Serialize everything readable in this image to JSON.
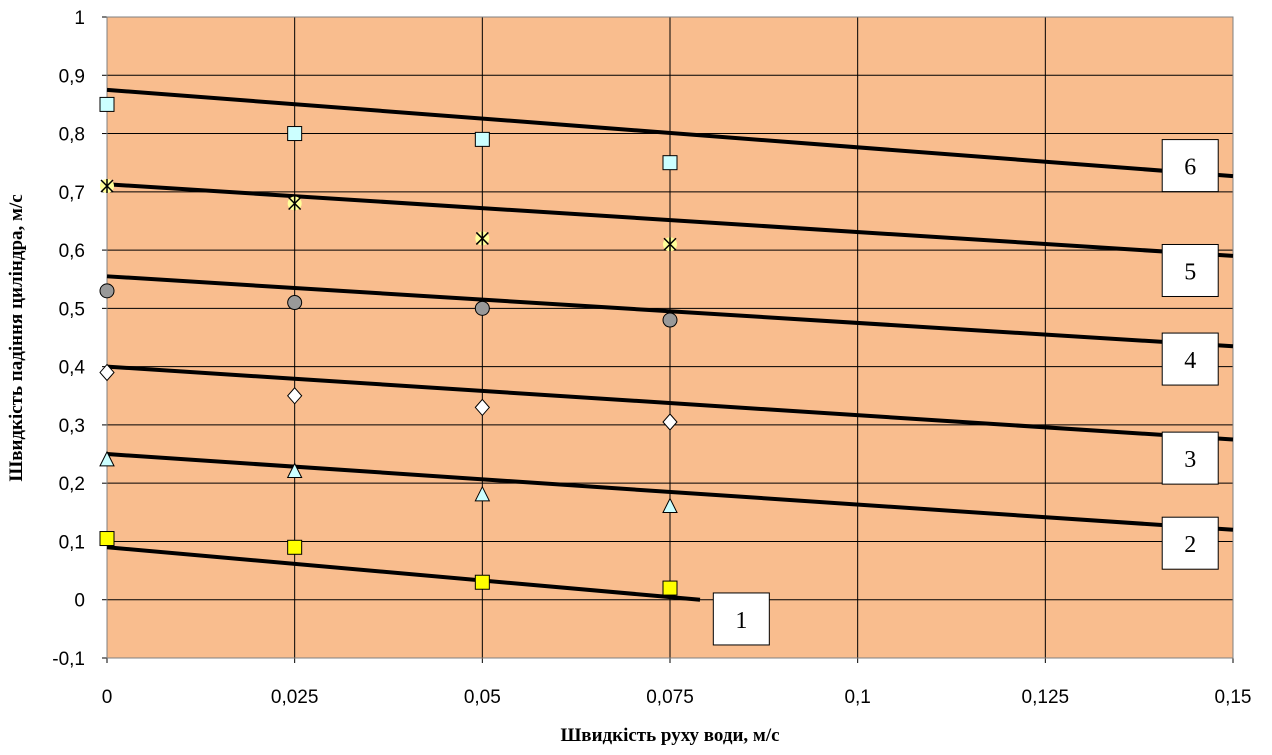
{
  "chart_data": {
    "type": "scatter",
    "xlabel": "Швидкість руху води, м/с",
    "ylabel": "Швидкість падіння циліндра, м/с",
    "xlim": [
      0,
      0.15
    ],
    "ylim": [
      -0.1,
      1
    ],
    "grid": true,
    "plot_background": "#F9BD8E",
    "x_ticks": [
      "0",
      "0,025",
      "0,05",
      "0,075",
      "0,1",
      "0,125",
      "0,15"
    ],
    "y_ticks": [
      "-0,1",
      "0",
      "0,1",
      "0,2",
      "0,3",
      "0,4",
      "0,5",
      "0,6",
      "0,7",
      "0,8",
      "0,9",
      "1"
    ],
    "x_tick_values": [
      0,
      0.025,
      0.05,
      0.075,
      0.1,
      0.125,
      0.15
    ],
    "y_tick_values": [
      -0.1,
      0,
      0.1,
      0.2,
      0.3,
      0.4,
      0.5,
      0.6,
      0.7,
      0.8,
      0.9,
      1
    ],
    "series": [
      {
        "label": "1",
        "marker": "square",
        "color": "#FFFF00",
        "x": [
          0,
          0.025,
          0.05,
          0.075
        ],
        "y": [
          0.105,
          0.09,
          0.03,
          0.02
        ],
        "trend": {
          "x0": 0,
          "y0": 0.09,
          "x1": 0.079,
          "y1": 0.0
        }
      },
      {
        "label": "2",
        "marker": "triangle",
        "color": "#CCFFFF",
        "x": [
          0,
          0.025,
          0.05,
          0.075
        ],
        "y": [
          0.24,
          0.22,
          0.18,
          0.16
        ],
        "trend": {
          "x0": 0,
          "y0": 0.25,
          "x1": 0.15,
          "y1": 0.12
        }
      },
      {
        "label": "3",
        "marker": "diamond",
        "color": "#FFFFFF",
        "x": [
          0,
          0.025,
          0.05,
          0.075
        ],
        "y": [
          0.39,
          0.35,
          0.33,
          0.305
        ],
        "trend": {
          "x0": 0,
          "y0": 0.4,
          "x1": 0.15,
          "y1": 0.275
        }
      },
      {
        "label": "4",
        "marker": "circle",
        "color": "#999999",
        "x": [
          0,
          0.025,
          0.05,
          0.075
        ],
        "y": [
          0.53,
          0.51,
          0.5,
          0.48
        ],
        "trend": {
          "x0": 0,
          "y0": 0.555,
          "x1": 0.15,
          "y1": 0.435
        }
      },
      {
        "label": "5",
        "marker": "star",
        "color": "#FFFF99",
        "x": [
          0,
          0.025,
          0.05,
          0.075
        ],
        "y": [
          0.71,
          0.68,
          0.62,
          0.61
        ],
        "trend": {
          "x0": 0,
          "y0": 0.713,
          "x1": 0.15,
          "y1": 0.59
        }
      },
      {
        "label": "6",
        "marker": "square",
        "color": "#CCFFFF",
        "x": [
          0,
          0.025,
          0.05,
          0.075
        ],
        "y": [
          0.85,
          0.8,
          0.79,
          0.75
        ],
        "trend": {
          "x0": 0,
          "y0": 0.875,
          "x1": 0.15,
          "y1": 0.727
        }
      }
    ],
    "line_labels": [
      {
        "text": "1",
        "x": 0.0845,
        "y": -0.033
      },
      {
        "text": "2",
        "x": 0.1443,
        "y": 0.097
      },
      {
        "text": "3",
        "x": 0.1443,
        "y": 0.243
      },
      {
        "text": "4",
        "x": 0.1443,
        "y": 0.413
      },
      {
        "text": "5",
        "x": 0.1443,
        "y": 0.565
      },
      {
        "text": "6",
        "x": 0.1443,
        "y": 0.745
      }
    ]
  }
}
